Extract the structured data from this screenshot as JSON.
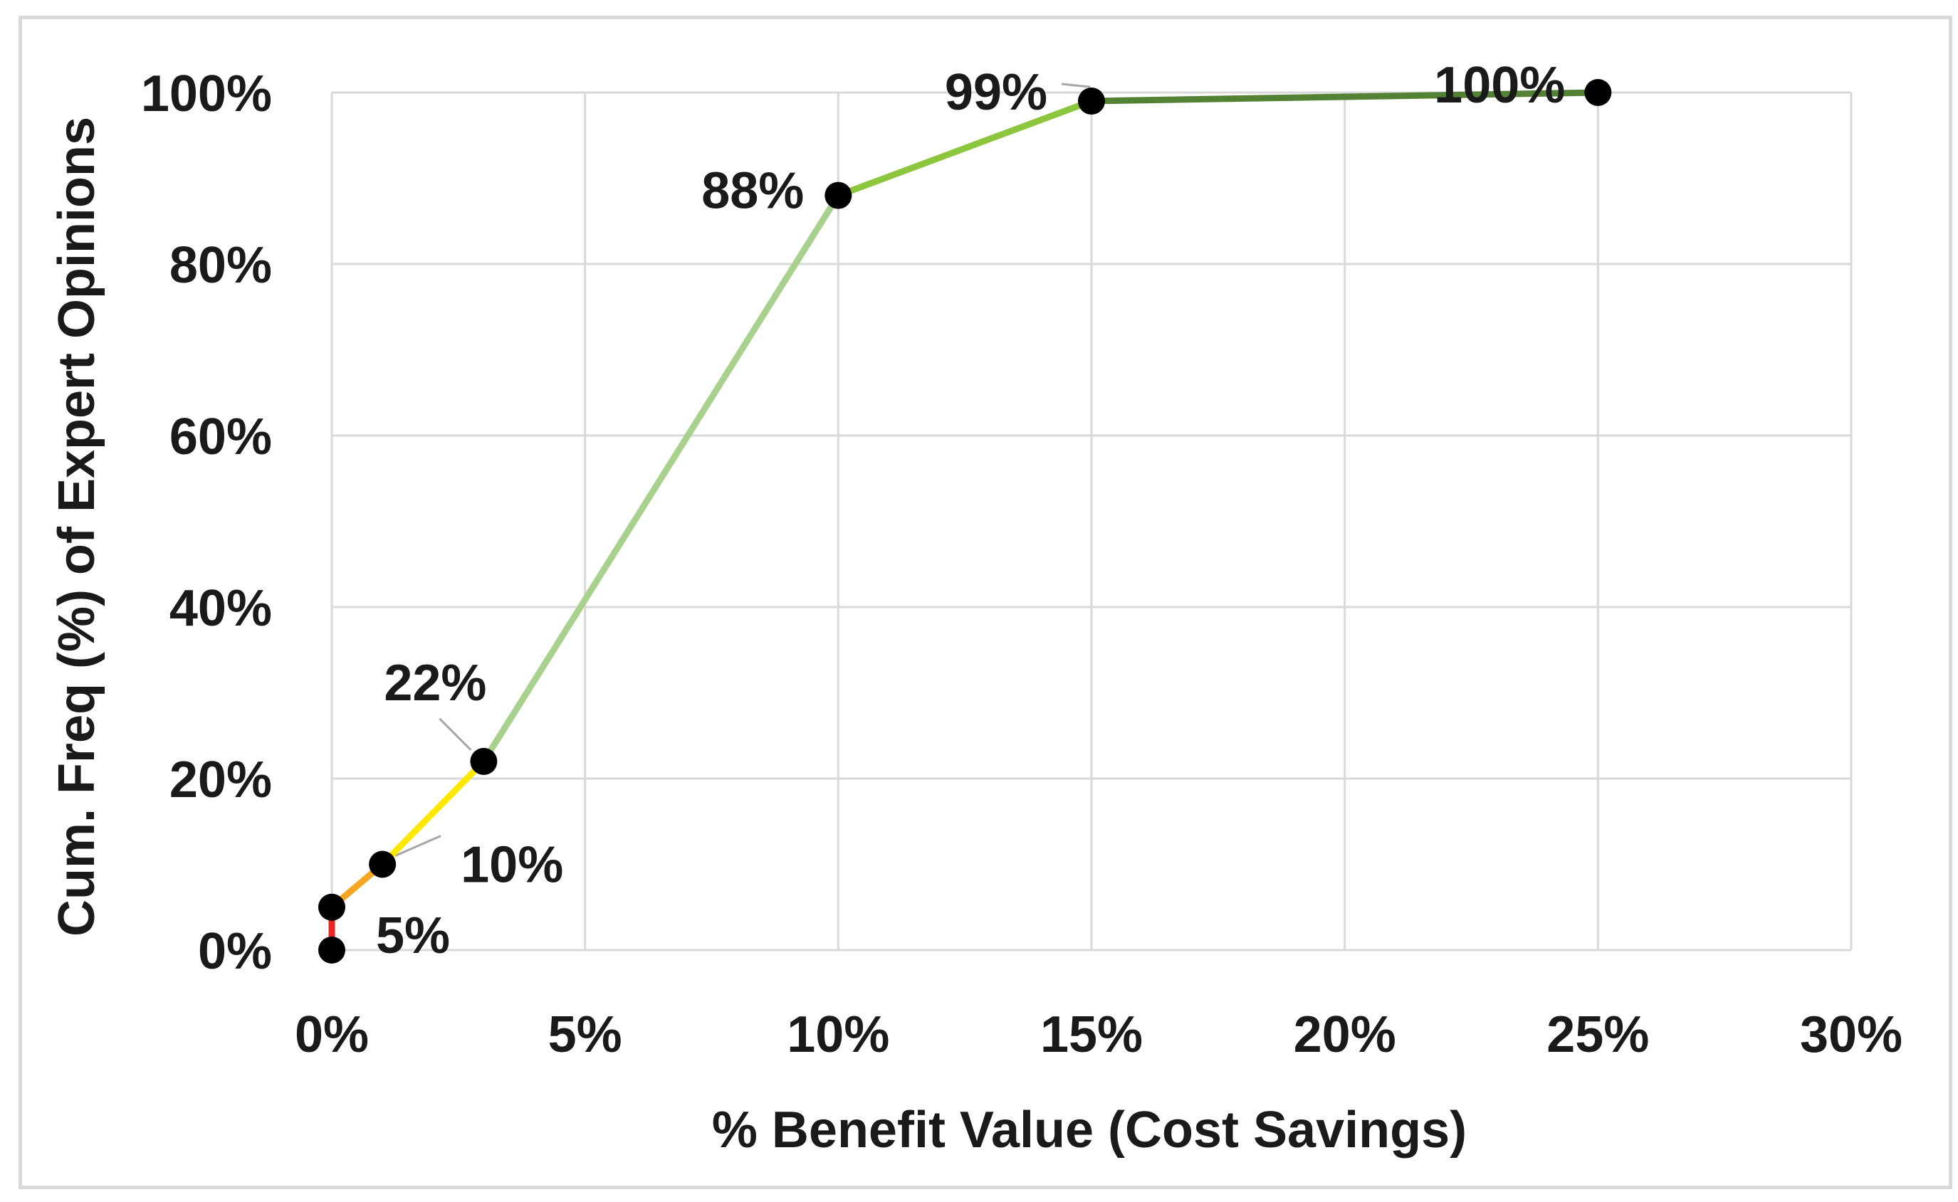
{
  "chart_data": {
    "type": "line",
    "xlabel": "% Benefit Value (Cost Savings)",
    "ylabel": "Cum. Freq (%) of Expert Opinions",
    "xlim": [
      0,
      30
    ],
    "ylim": [
      0,
      100
    ],
    "x_ticks": [
      0,
      5,
      10,
      15,
      20,
      25,
      30
    ],
    "y_ticks": [
      0,
      20,
      40,
      60,
      80,
      100
    ],
    "x_tick_labels": [
      "0%",
      "5%",
      "10%",
      "15%",
      "20%",
      "25%",
      "30%"
    ],
    "y_tick_labels": [
      "0%",
      "20%",
      "40%",
      "60%",
      "80%",
      "100%"
    ],
    "grid": true,
    "legend": "none",
    "points": [
      {
        "x": 0,
        "y": 0,
        "label": ""
      },
      {
        "x": 0,
        "y": 5,
        "label": "5%"
      },
      {
        "x": 1,
        "y": 10,
        "label": "10%"
      },
      {
        "x": 3,
        "y": 22,
        "label": "22%"
      },
      {
        "x": 10,
        "y": 88,
        "label": "88%"
      },
      {
        "x": 15,
        "y": 99,
        "label": "99%"
      },
      {
        "x": 25,
        "y": 100,
        "label": "100%"
      }
    ],
    "segment_colors": [
      "#e8251f",
      "#f5a623",
      "#ffe800",
      "#a9d18e",
      "#8cc63f",
      "#548235"
    ],
    "marker_color": "#000000",
    "grid_color": "#d9d9d9"
  }
}
